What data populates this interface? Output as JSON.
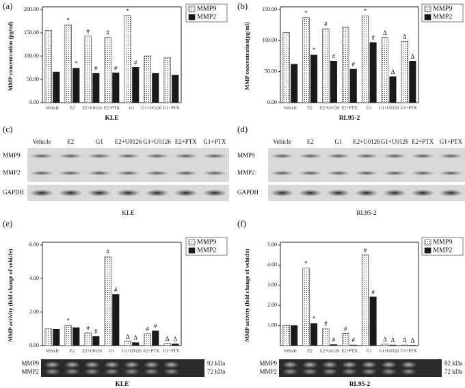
{
  "chart_data": [
    {
      "type": "bar",
      "panel_label": "(a)",
      "ylabel": "MMP concentration (pg/ml)",
      "xlabel": "KLE",
      "categories": [
        "Vehicle",
        "E2",
        "E2+U0126",
        "E2+PTX",
        "G1",
        "G1+U0126",
        "G1+PTX"
      ],
      "series": [
        {
          "name": "MMP9",
          "color": "#ffffff",
          "pattern": "dots",
          "values": [
            155,
            167,
            143,
            140,
            187,
            100,
            97
          ],
          "annotations": [
            null,
            "*",
            "#",
            "#",
            "*",
            null,
            null
          ]
        },
        {
          "name": "MMP2",
          "color": "#1a1a1a",
          "values": [
            66,
            74,
            63,
            64,
            76,
            63,
            59
          ],
          "annotations": [
            null,
            "*",
            "#",
            "#",
            "#",
            null,
            null
          ]
        }
      ],
      "ylim": [
        0,
        200
      ],
      "yticks": [
        {
          "value": 0,
          "label": "0.00"
        },
        {
          "value": 50,
          "label": "50.00"
        },
        {
          "value": 100,
          "label": "100.00"
        },
        {
          "value": 150,
          "label": "150.00"
        },
        {
          "value": 200,
          "label": "200.00"
        }
      ],
      "legend": "top-right"
    },
    {
      "type": "bar",
      "panel_label": "(b)",
      "ylabel": "MMP concentration(pg/ml)",
      "xlabel": "RL95-2",
      "categories": [
        "Vehicle",
        "E2",
        "E2+U0126",
        "E2+PTX",
        "G1",
        "G1+U0126",
        "G1+PTX"
      ],
      "series": [
        {
          "name": "MMP9",
          "color": "#ffffff",
          "pattern": "dots",
          "values": [
            113,
            137,
            119,
            122,
            140,
            105,
            99
          ],
          "annotations": [
            null,
            "*",
            "#",
            null,
            "*",
            "Δ",
            "Δ"
          ]
        },
        {
          "name": "MMP2",
          "color": "#1a1a1a",
          "values": [
            62,
            77,
            67,
            54,
            97,
            42,
            67
          ],
          "annotations": [
            null,
            "*",
            "#",
            "#",
            "#",
            "Δ",
            "Δ"
          ]
        }
      ],
      "ylim": [
        0,
        150
      ],
      "yticks": [
        {
          "value": 0,
          "label": "0.00"
        },
        {
          "value": 50,
          "label": "50.00"
        },
        {
          "value": 100,
          "label": "100.00"
        },
        {
          "value": 150,
          "label": "150.00"
        }
      ],
      "legend": "top-right"
    },
    {
      "type": "bar",
      "panel_label": "(e)",
      "ylabel": "MMP activity (fold change of vehicle)",
      "xlabel": "KLE",
      "categories": [
        "Vehicle",
        "E2",
        "E2+U0126",
        "G1",
        "G1+U0126",
        "E2+PTX",
        "G1+PTX"
      ],
      "series": [
        {
          "name": "MMP9",
          "color": "#ffffff",
          "pattern": "dots",
          "values": [
            1.0,
            1.2,
            0.75,
            5.3,
            0.25,
            0.7,
            0.12
          ],
          "annotations": [
            null,
            "*",
            "#",
            "#",
            "Δ",
            "#",
            "Δ"
          ]
        },
        {
          "name": "MMP2",
          "color": "#1a1a1a",
          "values": [
            0.97,
            1.07,
            0.55,
            3.05,
            0.18,
            0.88,
            0.1
          ],
          "annotations": [
            null,
            null,
            "#",
            "#",
            "Δ",
            "#",
            "Δ"
          ]
        }
      ],
      "ylim": [
        0,
        6
      ],
      "yticks": [
        {
          "value": 0,
          "label": "0.00"
        },
        {
          "value": 2,
          "label": "2.00"
        },
        {
          "value": 4,
          "label": "4.00"
        },
        {
          "value": 6,
          "label": "6.00"
        }
      ],
      "legend": "top-right",
      "gel_labels": [
        "MMP9",
        "MMP2"
      ],
      "gel_sizes": [
        "92 kDa",
        "72 kDa"
      ]
    },
    {
      "type": "bar",
      "panel_label": "(f)",
      "ylabel": "MMP activity (fold change of vehicle)",
      "xlabel": "RL95-2",
      "categories": [
        "Vehicle",
        "E2",
        "E2+U0126",
        "E2+PTX",
        "G1",
        "G1+U0126",
        "G1+PTX"
      ],
      "series": [
        {
          "name": "MMP9",
          "color": "#ffffff",
          "pattern": "dots",
          "values": [
            1.0,
            3.85,
            0.85,
            0.6,
            4.5,
            0.07,
            0.03
          ],
          "annotations": [
            null,
            "*",
            "#",
            "#",
            "#",
            "Δ",
            "Δ"
          ]
        },
        {
          "name": "MMP2",
          "color": "#1a1a1a",
          "values": [
            1.0,
            1.1,
            0.05,
            0.03,
            2.42,
            0.03,
            0.02
          ],
          "annotations": [
            null,
            "*",
            "#",
            "#",
            "#",
            "Δ",
            "Δ"
          ]
        }
      ],
      "ylim": [
        0,
        5
      ],
      "yticks": [
        {
          "value": 1,
          "label": "1.00"
        },
        {
          "value": 2,
          "label": "2.00"
        },
        {
          "value": 3,
          "label": "3.00"
        },
        {
          "value": 4,
          "label": "4.00"
        },
        {
          "value": 5,
          "label": "5.00"
        }
      ],
      "legend": "top-right",
      "gel_labels": [
        "MMP9",
        "MMP2"
      ],
      "gel_sizes": [
        "92 kDa",
        "72 kDa"
      ]
    }
  ],
  "blots": [
    {
      "panel_label": "(c)",
      "lanes": [
        "Vehicle",
        "E2",
        "G1",
        "E2+U0126",
        "G1+U0126",
        "E2+PTX",
        "G1+PTX"
      ],
      "rows": [
        "MMP9",
        "MMP2",
        "GAPDH"
      ],
      "cell_line": "KLE"
    },
    {
      "panel_label": "(d)",
      "lanes": [
        "Vehicle",
        "E2",
        "G1",
        "E2+U0126",
        "G1+U0126",
        "E2+PTX",
        "G1+PTX"
      ],
      "rows": [
        "MMP9",
        "MMP2",
        "GAPDH"
      ],
      "cell_line": "RL95-2"
    }
  ]
}
